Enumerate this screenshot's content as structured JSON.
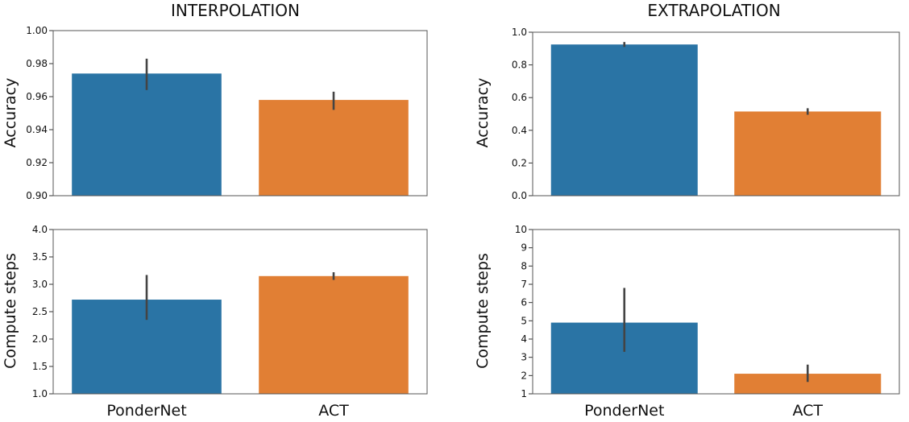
{
  "chart_data": [
    {
      "type": "bar",
      "title": "INTERPOLATION",
      "xlabel": "",
      "ylabel": "Accuracy",
      "categories": [
        "PonderNet",
        "ACT"
      ],
      "values": [
        0.974,
        0.958
      ],
      "error_low": [
        0.964,
        0.952
      ],
      "error_high": [
        0.983,
        0.963
      ],
      "ylim": [
        0.9,
        1.0
      ],
      "yticks": [
        "0.90",
        "0.92",
        "0.94",
        "0.96",
        "0.98",
        "1.00"
      ],
      "colors": [
        "#2a74a5",
        "#e17f34"
      ],
      "show_xticklabels": false
    },
    {
      "type": "bar",
      "title": "EXTRAPOLATION",
      "xlabel": "",
      "ylabel": "Accuracy",
      "categories": [
        "PonderNet",
        "ACT"
      ],
      "values": [
        0.925,
        0.515
      ],
      "error_low": [
        0.91,
        0.495
      ],
      "error_high": [
        0.94,
        0.535
      ],
      "ylim": [
        0.0,
        1.0
      ],
      "yticks": [
        "0.0",
        "0.2",
        "0.4",
        "0.6",
        "0.8",
        "1.0"
      ],
      "colors": [
        "#2a74a5",
        "#e17f34"
      ],
      "show_xticklabels": false
    },
    {
      "type": "bar",
      "title": "",
      "xlabel": "",
      "ylabel": "Compute steps",
      "categories": [
        "PonderNet",
        "ACT"
      ],
      "values": [
        2.72,
        3.15
      ],
      "error_low": [
        2.35,
        3.08
      ],
      "error_high": [
        3.17,
        3.22
      ],
      "ylim": [
        1.0,
        4.0
      ],
      "yticks": [
        "1.0",
        "1.5",
        "2.0",
        "2.5",
        "3.0",
        "3.5",
        "4.0"
      ],
      "colors": [
        "#2a74a5",
        "#e17f34"
      ],
      "show_xticklabels": true
    },
    {
      "type": "bar",
      "title": "",
      "xlabel": "",
      "ylabel": "Compute steps",
      "categories": [
        "PonderNet",
        "ACT"
      ],
      "values": [
        4.9,
        2.1
      ],
      "error_low": [
        3.3,
        1.65
      ],
      "error_high": [
        6.8,
        2.6
      ],
      "ylim": [
        1,
        10
      ],
      "yticks": [
        "1",
        "2",
        "3",
        "4",
        "5",
        "6",
        "7",
        "8",
        "9",
        "10"
      ],
      "colors": [
        "#2a74a5",
        "#e17f34"
      ],
      "show_xticklabels": true
    }
  ]
}
